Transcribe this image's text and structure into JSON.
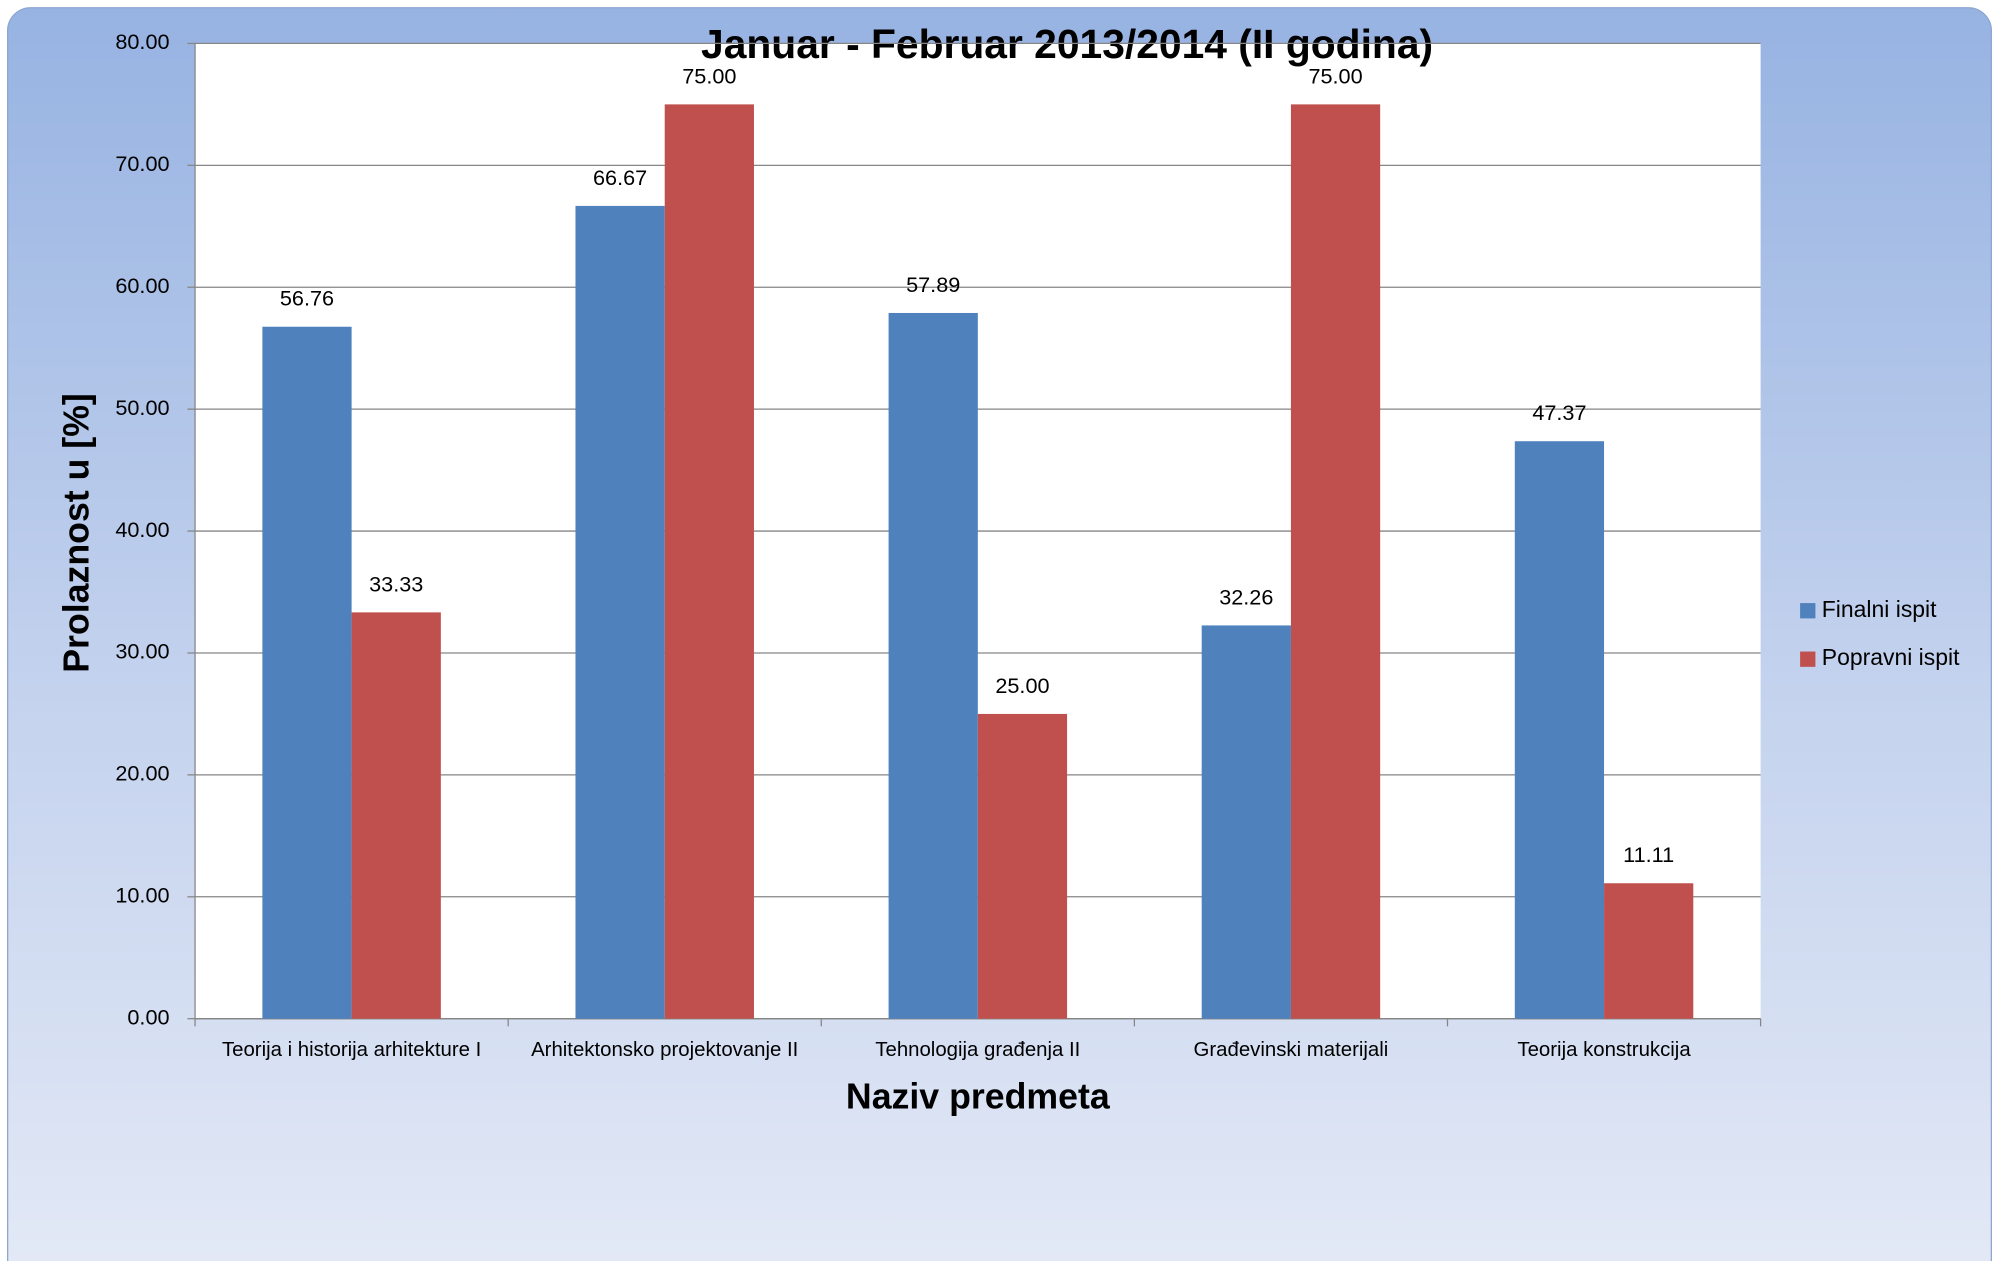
{
  "chart_data": {
    "type": "bar",
    "title": "Januar - Februar 2013/2014 (II godina)",
    "x_label": "Naziv predmeta",
    "y_label": "Prolaznost u [%]",
    "categories": [
      "Teorija i historija arhitekture I",
      "Arhitektonsko projektovanje II",
      "Tehnologija građenja II",
      "Građevinski materijali",
      "Teorija konstrukcija"
    ],
    "series": [
      {
        "name": "Finalni ispit",
        "color": "#4f81bd",
        "values": [
          56.76,
          66.67,
          57.89,
          32.26,
          47.37
        ],
        "value_labels": [
          "56.76",
          "66.67",
          "57.89",
          "32.26",
          "47.37"
        ]
      },
      {
        "name": "Popravni ispit",
        "color": "#c0504d",
        "values": [
          33.33,
          75,
          25,
          75,
          11.11
        ],
        "value_labels": [
          "33.33",
          "75.00",
          "25.00",
          "75.00",
          "11.11"
        ]
      }
    ],
    "ylim": [
      0,
      80
    ],
    "yticks": [
      {
        "value": 0,
        "label": "0.00"
      },
      {
        "value": 10,
        "label": "10.00"
      },
      {
        "value": 20,
        "label": "20.00"
      },
      {
        "value": 30,
        "label": "30.00"
      },
      {
        "value": 40,
        "label": "40.00"
      },
      {
        "value": 50,
        "label": "50.00"
      },
      {
        "value": 60,
        "label": "60.00"
      },
      {
        "value": 70,
        "label": "70.00"
      },
      {
        "value": 80,
        "label": "80.00"
      }
    ],
    "grid": true,
    "legend": "right"
  }
}
